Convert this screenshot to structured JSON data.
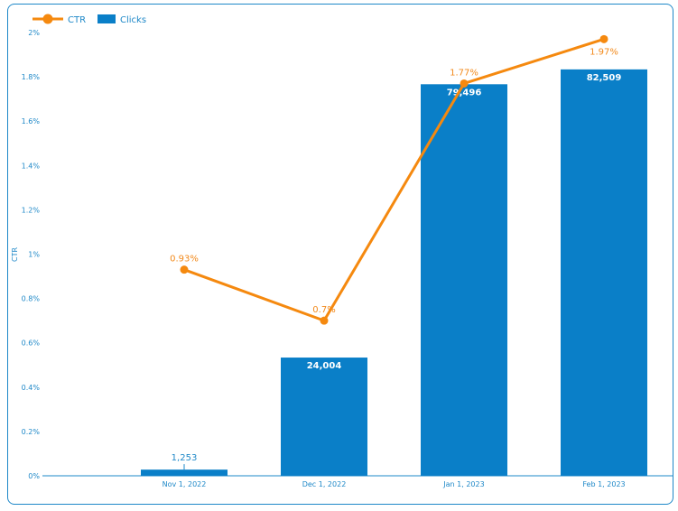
{
  "chart_data": {
    "type": "bar",
    "categories": [
      "Nov 1, 2022",
      "Dec 1, 2022",
      "Jan 1, 2023",
      "Feb 1, 2023"
    ],
    "series": [
      {
        "name": "Clicks",
        "kind": "bar",
        "values": [
          1253,
          24004,
          79496,
          82509
        ],
        "labels": [
          "1,253",
          "24,004",
          "79,496",
          "82,509"
        ],
        "color": "#0a7fc8"
      },
      {
        "name": "CTR",
        "kind": "line",
        "values": [
          0.93,
          0.7,
          1.77,
          1.97
        ],
        "labels": [
          "0.93%",
          "0.7%",
          "1.77%",
          "1.97%"
        ],
        "color": "#f5890f"
      }
    ],
    "ylabel": "CTR",
    "ylim": [
      0,
      2
    ],
    "yticks": [
      "0%",
      "0.2%",
      "0.4%",
      "0.6%",
      "0.8%",
      "1%",
      "1.2%",
      "1.4%",
      "1.6%",
      "1.8%",
      "2%"
    ],
    "clicks_axis_max": 90000,
    "legend_position": "top-left",
    "grid": false
  }
}
